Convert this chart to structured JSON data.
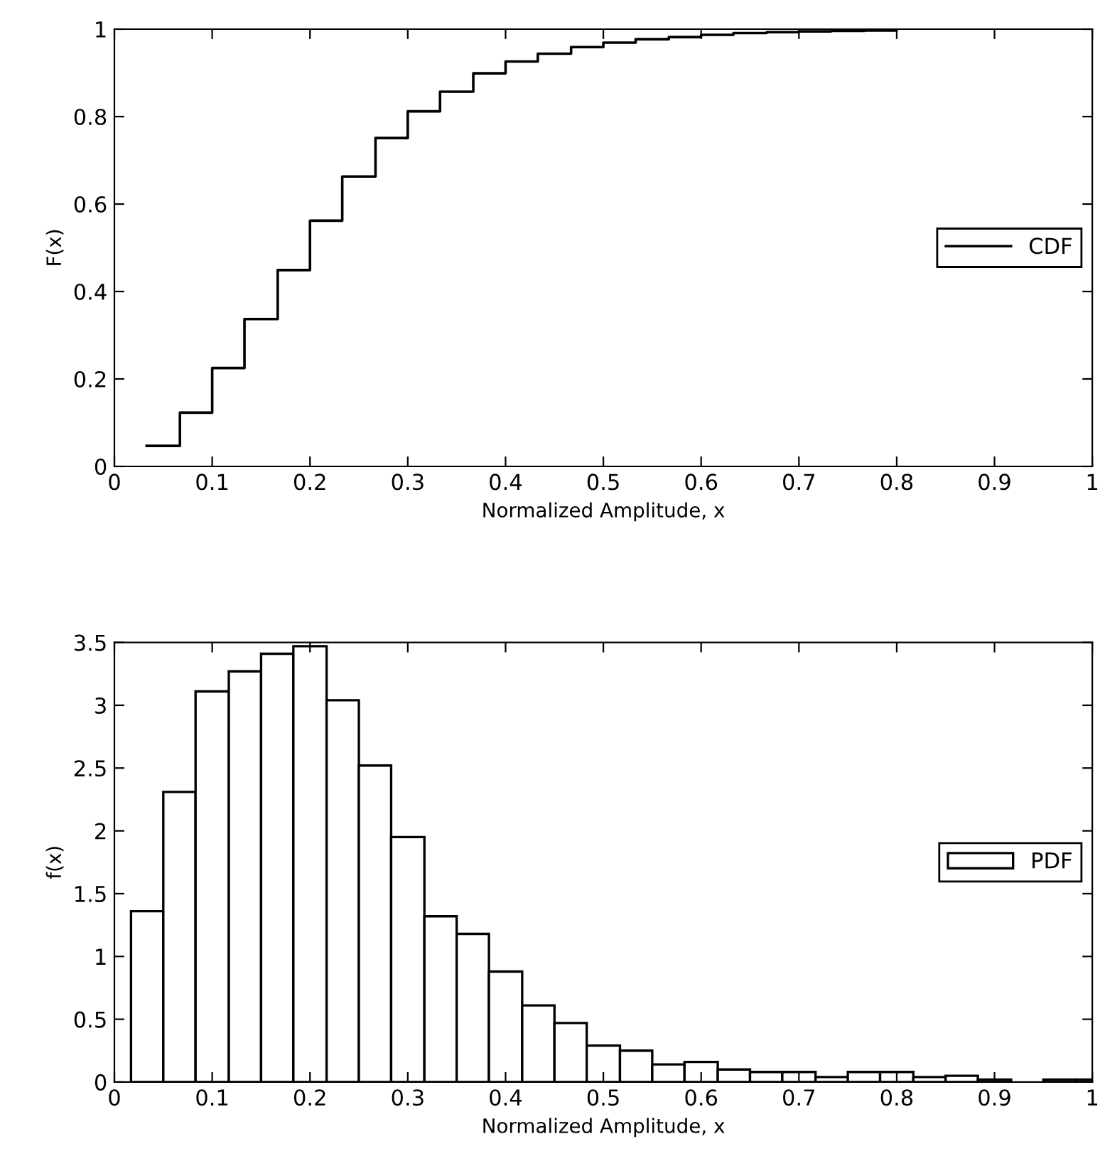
{
  "chart_data": [
    {
      "type": "step",
      "xlabel": "Normalized Amplitude, x",
      "ylabel": "F(x)",
      "xlim": [
        0,
        1
      ],
      "ylim": [
        0,
        1
      ],
      "xticks": [
        0,
        0.1,
        0.2,
        0.3,
        0.4,
        0.5,
        0.6,
        0.7,
        0.8,
        0.9,
        1
      ],
      "yticks": [
        0,
        0.2,
        0.4,
        0.6,
        0.8,
        1
      ],
      "grid": false,
      "legend": "center right",
      "series": [
        {
          "name": "CDF",
          "color": "#000000",
          "x": [
            0.033,
            0.067,
            0.1,
            0.133,
            0.167,
            0.2,
            0.233,
            0.267,
            0.3,
            0.333,
            0.367,
            0.4,
            0.433,
            0.467,
            0.5,
            0.533,
            0.567,
            0.6,
            0.633,
            0.667,
            0.7,
            0.733,
            0.767,
            0.8
          ],
          "values": [
            0.047,
            0.123,
            0.225,
            0.337,
            0.449,
            0.562,
            0.663,
            0.751,
            0.812,
            0.857,
            0.899,
            0.926,
            0.944,
            0.959,
            0.969,
            0.977,
            0.982,
            0.987,
            0.991,
            0.993,
            0.995,
            0.996,
            0.997,
            0.998
          ]
        }
      ]
    },
    {
      "type": "histogram",
      "xlabel": "Normalized Amplitude, x",
      "ylabel": "f(x)",
      "xlim": [
        0,
        1
      ],
      "ylim": [
        0,
        3.5
      ],
      "xticks": [
        0,
        0.1,
        0.2,
        0.3,
        0.4,
        0.5,
        0.6,
        0.7,
        0.8,
        0.9,
        1
      ],
      "yticks": [
        0,
        0.5,
        1,
        1.5,
        2,
        2.5,
        3,
        3.5
      ],
      "grid": false,
      "legend": "center right",
      "bins": [
        0.017,
        0.05,
        0.083,
        0.117,
        0.15,
        0.183,
        0.217,
        0.25,
        0.283,
        0.317,
        0.35,
        0.383,
        0.417,
        0.45,
        0.483,
        0.517,
        0.55,
        0.583,
        0.617,
        0.65,
        0.683,
        0.717,
        0.75,
        0.783,
        0.817,
        0.85,
        0.883,
        0.917,
        0.95,
        0.983,
        1.0
      ],
      "series": [
        {
          "name": "PDF",
          "color": "#ffffff",
          "values": [
            1.36,
            2.31,
            3.11,
            3.27,
            3.41,
            3.47,
            3.04,
            2.52,
            1.95,
            1.32,
            1.18,
            0.88,
            0.61,
            0.47,
            0.29,
            0.25,
            0.14,
            0.16,
            0.1,
            0.08,
            0.08,
            0.04,
            0.08,
            0.08,
            0.04,
            0.05,
            0.02,
            null,
            0.02,
            0.02
          ]
        }
      ]
    }
  ]
}
